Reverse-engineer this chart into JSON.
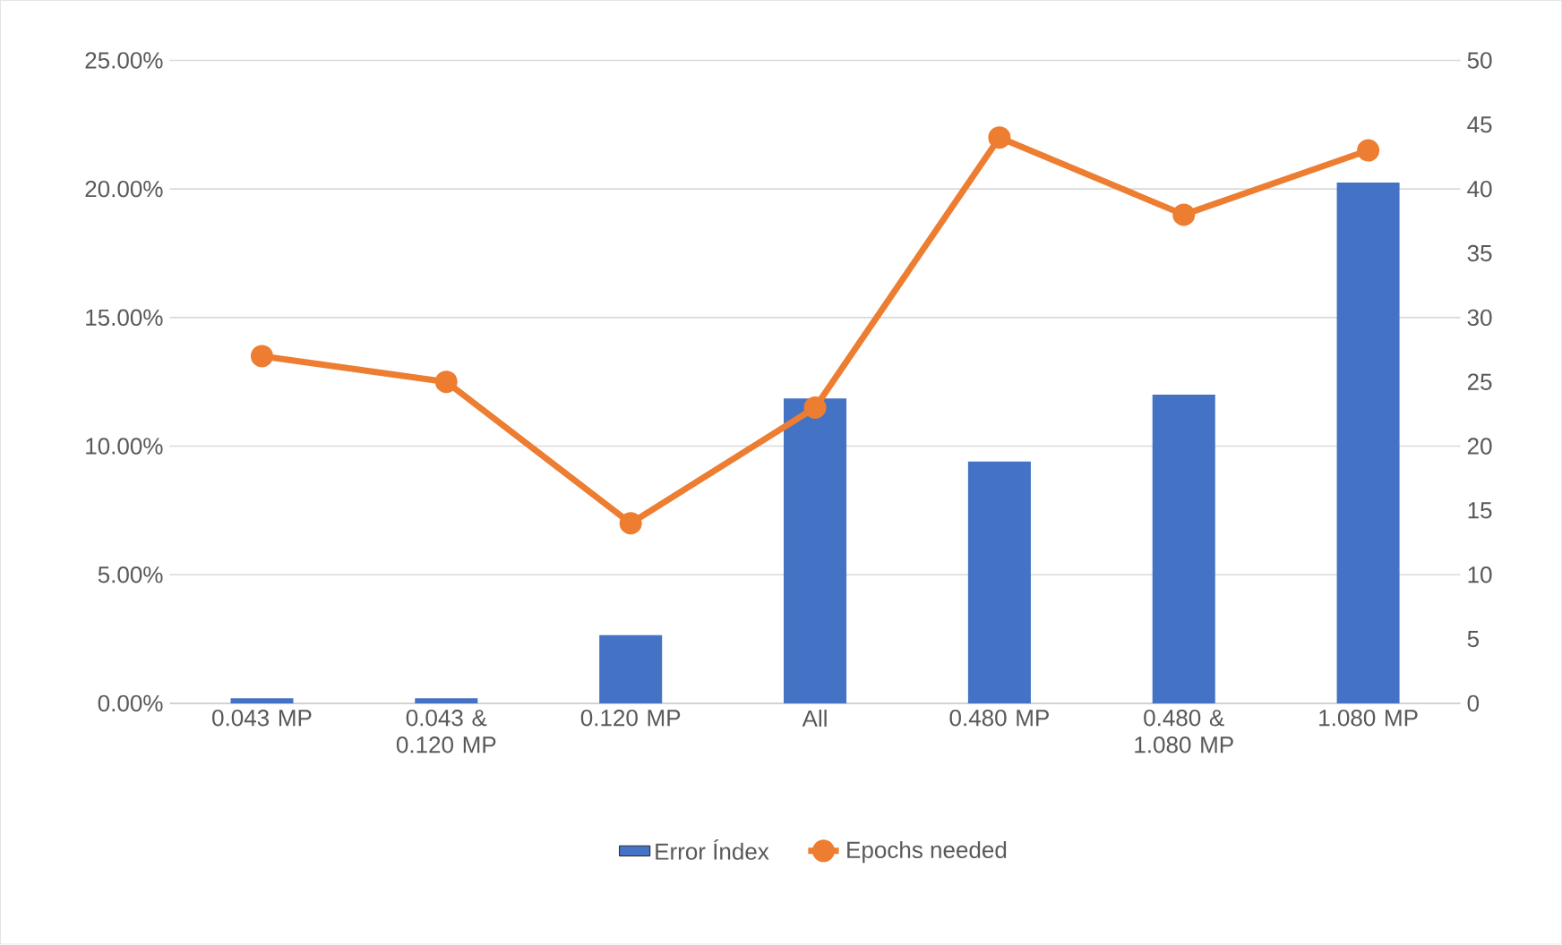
{
  "chart_data": {
    "type": "bar",
    "categories": [
      "0.043 MP",
      "0.043 & 0.120 MP",
      "0.120 MP",
      "All",
      "0.480 MP",
      "0.480 & 1.080 MP",
      "1.080 MP"
    ],
    "series": [
      {
        "name": "Error Índex",
        "color": "#4472c4",
        "values": [
          0.2,
          0.2,
          2.65,
          11.85,
          9.4,
          12.0,
          20.25
        ]
      },
      {
        "name": "Epochs needed",
        "type": "line",
        "axis": "y2",
        "color": "#ed7d31",
        "marker": "circle",
        "values": [
          27,
          25,
          14,
          23,
          44,
          38,
          43
        ]
      }
    ],
    "ylim": [
      0,
      25
    ],
    "yticks": [
      {
        "value": 0,
        "label": "0.00%"
      },
      {
        "value": 5,
        "label": "5.00%"
      },
      {
        "value": 10,
        "label": "10.00%"
      },
      {
        "value": 15,
        "label": "15.00%"
      },
      {
        "value": 20,
        "label": "20.00%"
      },
      {
        "value": 25,
        "label": "25.00%"
      }
    ],
    "y2lim": [
      0,
      50
    ],
    "y2ticks": [
      0,
      5,
      10,
      15,
      20,
      25,
      30,
      35,
      40,
      45,
      50
    ],
    "grid": "y",
    "legend": "bottom"
  }
}
